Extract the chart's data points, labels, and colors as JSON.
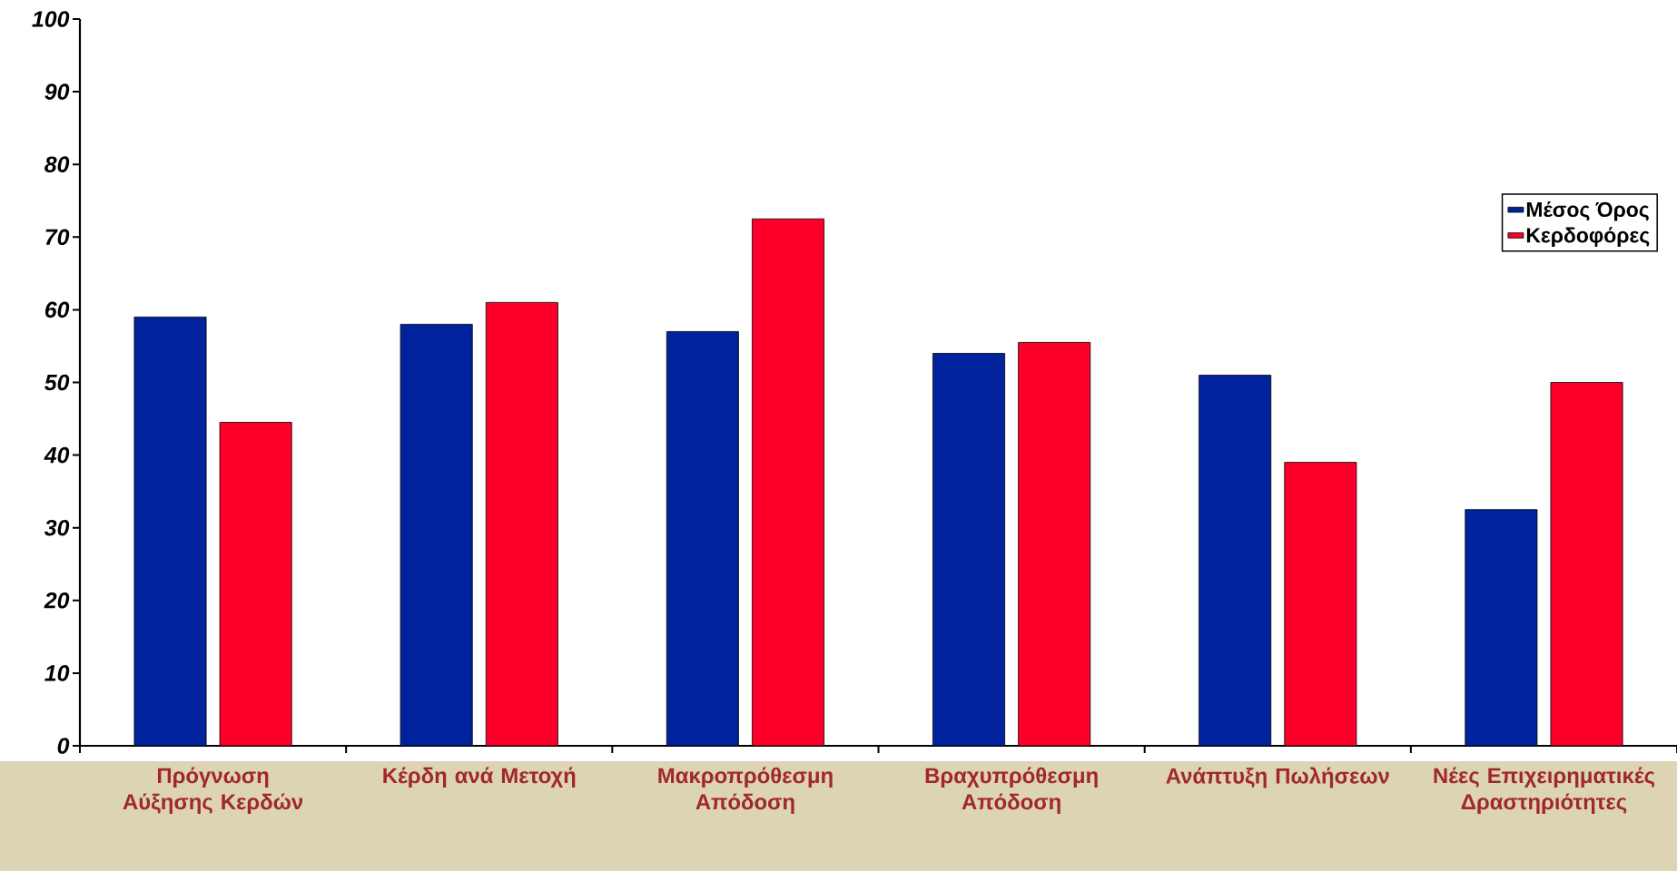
{
  "chart_data": {
    "type": "bar",
    "categories": [
      "Πρόγνωση Αύξησης Κερδών",
      "Κέρδη ανά Μετοχή",
      "Μακροπρόθεσμη Απόδοση",
      "Βραχυπρόθεσμη Απόδοση",
      "Ανάπτυξη Πωλήσεων",
      "Νέες Επιχειρηματικές Δραστηριότητες"
    ],
    "series": [
      {
        "name": "Μέσος Όρος",
        "color": "#00229c",
        "values": [
          59,
          58,
          57,
          54,
          51,
          32.5
        ]
      },
      {
        "name": "Κερδοφόρες",
        "color": "#fc002a",
        "values": [
          44.5,
          61,
          72.5,
          55.5,
          39,
          50
        ]
      }
    ],
    "ylim": [
      0,
      100
    ],
    "yticks": [
      0,
      10,
      20,
      30,
      40,
      50,
      60,
      70,
      80,
      90,
      100
    ],
    "grid": false,
    "legend": "top right"
  }
}
